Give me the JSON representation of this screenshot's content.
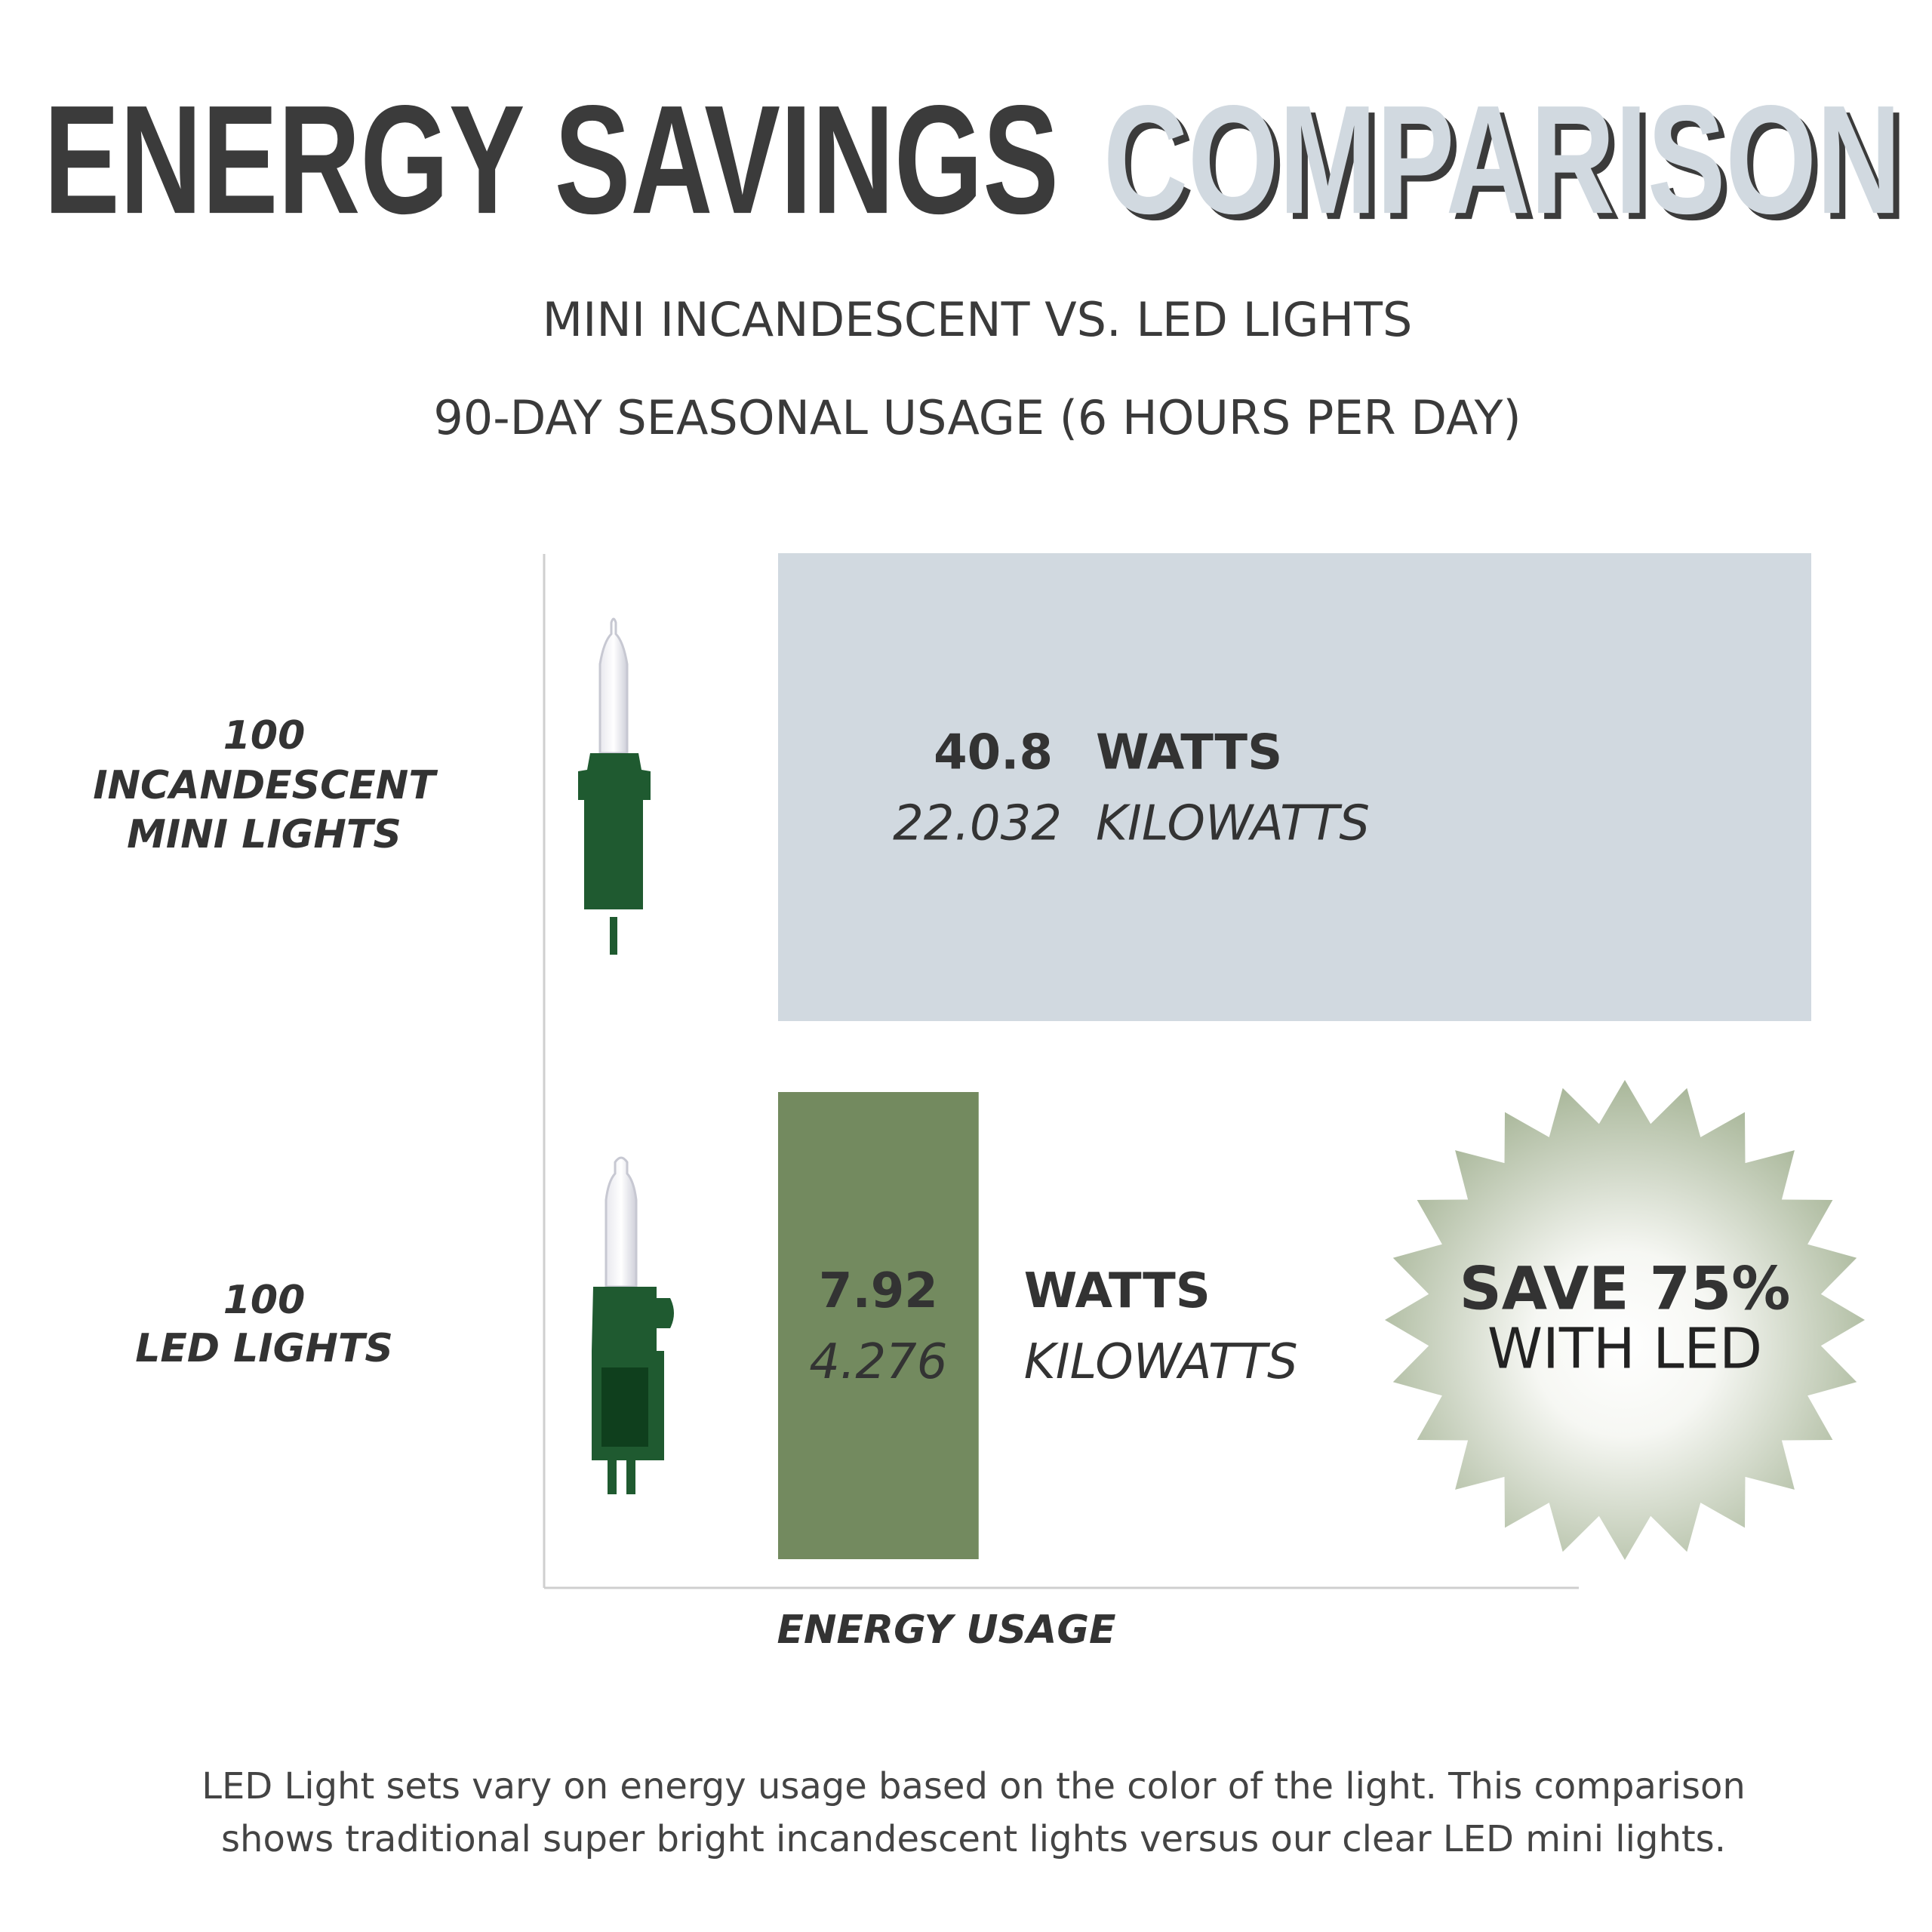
{
  "chart_data": {
    "type": "bar",
    "orientation": "horizontal",
    "title": "ENERGY SAVINGS",
    "title_2": "COMPARISON",
    "subtitle": "MINI INCANDESCENT VS. LED LIGHTS",
    "subtitle_2": "90-DAY SEASONAL USAGE (6 HOURS PER DAY)",
    "categories": [
      [
        "100",
        "INCANDESCENT",
        "MINI LIGHTS"
      ],
      [
        "100",
        "LED LIGHTS"
      ]
    ],
    "colors": [
      "#d1d9e0",
      "#738a5f"
    ],
    "series": [
      {
        "name": "WATTS",
        "values": [
          40.8,
          7.92
        ]
      },
      {
        "name": "KILOWATTS",
        "values": [
          22.032,
          4.276
        ]
      }
    ],
    "xlim": [
      0,
      40.8
    ],
    "xlabel": "ENERGY USAGE",
    "badge": [
      "SAVE 75%",
      "WITH LED"
    ],
    "footnote": [
      "LED Light sets vary on energy usage based on the color of the light. This comparison",
      "shows traditional super bright incandescent lights versus our clear LED mini lights."
    ]
  }
}
